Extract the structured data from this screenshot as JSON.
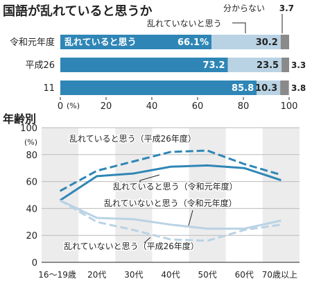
{
  "charts": {
    "top_title": "国語が乱れていると思うか",
    "bottom_title": "年齢別"
  },
  "colors": {
    "disordered": "#2f86b6",
    "not_disordered": "#b9d3e4",
    "unknown": "#8a8a8a",
    "stripe": "#ececec"
  },
  "chart_data": [
    {
      "type": "bar",
      "title": "国語が乱れていると思うか",
      "stacked": true,
      "orientation": "horizontal",
      "categories": [
        "令和元年度",
        "平成26",
        "11"
      ],
      "xlim": [
        0,
        100
      ],
      "x_unit": "(%)",
      "x_ticks": [
        "0",
        "20",
        "40",
        "60",
        "80",
        "100"
      ],
      "series": [
        {
          "name": "乱れていると思う",
          "values": [
            66.1,
            73.2,
            85.8
          ],
          "labels": [
            "66.1%",
            "73.2",
            "85.8"
          ]
        },
        {
          "name": "乱れていないと思う",
          "values": [
            30.2,
            23.5,
            10.3
          ],
          "labels": [
            "30.2",
            "23.5",
            "10.3"
          ]
        },
        {
          "name": "分からない",
          "values": [
            3.7,
            3.3,
            3.8
          ],
          "labels": [
            "3.7",
            "3.3",
            "3.8"
          ]
        }
      ],
      "in_bar_label": "乱れていると思う",
      "callouts": {
        "not_disordered": "乱れていないと思う",
        "unknown": "分からない"
      }
    },
    {
      "type": "line",
      "title": "年齢別",
      "categories": [
        "16〜19歳",
        "20代",
        "30代",
        "40代",
        "50代",
        "60代",
        "70歳以上"
      ],
      "ylim": [
        0,
        100
      ],
      "y_unit": "(%)",
      "y_ticks": [
        "0",
        "20",
        "40",
        "60",
        "80",
        "100"
      ],
      "series": [
        {
          "name": "乱れていると思う（平成26年度）",
          "style": "dashed",
          "color": "#2f86b6",
          "values": [
            53,
            68,
            75,
            82,
            83,
            73,
            65
          ]
        },
        {
          "name": "乱れていると思う（令和元年度）",
          "style": "solid",
          "color": "#2f86b6",
          "values": [
            46,
            64,
            66,
            71,
            72,
            70,
            61
          ]
        },
        {
          "name": "乱れていないと思う（令和元年度）",
          "style": "solid",
          "color": "#b9d3e4",
          "values": [
            46,
            33,
            32,
            28,
            25,
            25,
            31
          ]
        },
        {
          "name": "乱れていないと思う（平成26年度）",
          "style": "dashed",
          "color": "#b9d3e4",
          "values": [
            46,
            30,
            24,
            17,
            16,
            24,
            28
          ]
        }
      ]
    }
  ]
}
